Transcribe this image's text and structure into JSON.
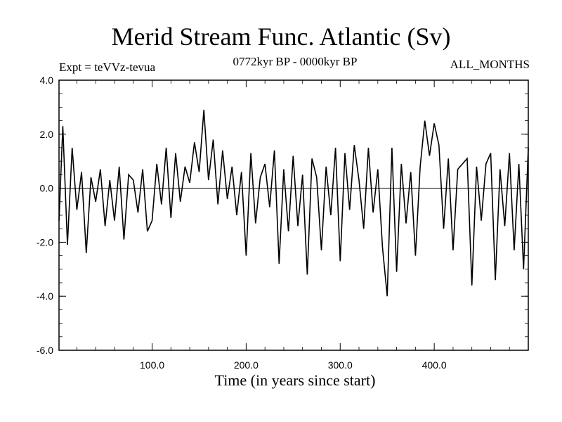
{
  "chart_data": {
    "type": "line",
    "title": "Merid Stream Func. Atlantic (Sv)",
    "subtitle_left": "Expt = teVVz-tevua",
    "subtitle_center": "0772kyr BP - 0000kyr BP",
    "subtitle_right": "ALL_MONTHS",
    "xlabel": "Time (in years since start)",
    "ylabel": "",
    "xlim": [
      1,
      500
    ],
    "ylim": [
      -6.0,
      4.0
    ],
    "xticks": [
      100,
      200,
      300,
      400
    ],
    "xtick_labels": [
      "100.0",
      "200.0",
      "300.0",
      "400.0"
    ],
    "yticks": [
      4.0,
      2.0,
      0.0,
      -2.0,
      -4.0,
      -6.0
    ],
    "ytick_labels": [
      "4.0",
      "2.0",
      "0.0",
      "-2.0",
      "-4.0",
      "-6.0"
    ],
    "zero_line": true,
    "grid": false,
    "line_color": "#000000",
    "series": [
      {
        "x": [
          1,
          5,
          10,
          15,
          20,
          25,
          30,
          35,
          40,
          45,
          50,
          55,
          60,
          65,
          70,
          75,
          80,
          85,
          90,
          95,
          100,
          105,
          110,
          115,
          120,
          125,
          130,
          135,
          140,
          145,
          150,
          155,
          160,
          165,
          170,
          175,
          180,
          185,
          190,
          195,
          200,
          205,
          210,
          215,
          220,
          225,
          230,
          235,
          240,
          245,
          250,
          255,
          260,
          265,
          270,
          275,
          280,
          285,
          290,
          295,
          300,
          305,
          310,
          315,
          320,
          325,
          330,
          335,
          340,
          345,
          350,
          355,
          360,
          365,
          370,
          375,
          380,
          385,
          390,
          395,
          400,
          405,
          410,
          415,
          420,
          425,
          430,
          435,
          440,
          445,
          450,
          455,
          460,
          465,
          470,
          475,
          480,
          485,
          490,
          495,
          500
        ],
        "values": [
          -1.2,
          2.3,
          -2.1,
          1.5,
          -0.8,
          0.6,
          -2.4,
          0.4,
          -0.5,
          0.7,
          -1.4,
          0.3,
          -1.2,
          0.8,
          -1.9,
          0.5,
          0.3,
          -0.9,
          0.7,
          -1.6,
          -1.2,
          0.9,
          -0.6,
          1.5,
          -1.1,
          1.3,
          -0.5,
          0.8,
          0.2,
          1.7,
          0.6,
          2.9,
          0.3,
          1.8,
          -0.6,
          1.4,
          -0.4,
          0.8,
          -1.0,
          0.6,
          -2.5,
          1.3,
          -1.3,
          0.4,
          0.9,
          -0.7,
          1.4,
          -2.8,
          0.7,
          -1.6,
          1.2,
          -1.4,
          0.5,
          -3.2,
          1.1,
          0.4,
          -2.3,
          0.8,
          -1.0,
          1.5,
          -2.7,
          1.3,
          -0.8,
          1.6,
          0.3,
          -1.5,
          1.5,
          -0.9,
          0.7,
          -2.2,
          -4.0,
          1.5,
          -3.1,
          0.9,
          -1.3,
          0.6,
          -2.5,
          0.8,
          2.5,
          1.2,
          2.4,
          1.6,
          -1.5,
          1.1,
          -2.3,
          0.7,
          0.9,
          1.1,
          -3.6,
          0.8,
          -1.2,
          0.9,
          1.3,
          -3.4,
          0.7,
          -1.4,
          1.3,
          -2.3,
          0.9,
          -3.0,
          1.5
        ]
      }
    ]
  }
}
